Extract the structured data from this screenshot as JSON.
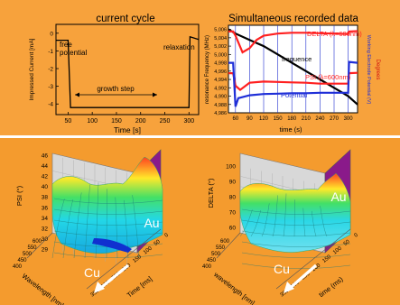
{
  "panels": {
    "current_cycle": {
      "title": "current cycle",
      "ylabel": "Impressed Current [mA]",
      "xlabel": "Time [s]",
      "xticks": [
        "50",
        "100",
        "150",
        "200",
        "250",
        "300"
      ],
      "yticks": [
        "0",
        "-1",
        "-2",
        "-3",
        "-4"
      ],
      "annotations": [
        "free",
        "potential",
        "growth step",
        "relaxation"
      ]
    },
    "simultaneous": {
      "title": "Simultaneous recorded data",
      "xlabel": "time (s)",
      "ylabel_left": "resonance Frequency (MHz)",
      "ylabel_right": "Working Electrode Potential (V)",
      "ylabel_right_outer": "Degrees",
      "xticks": [
        "60",
        "90",
        "120",
        "150",
        "180",
        "210",
        "240",
        "270",
        "300"
      ],
      "yticks_left": [
        "5,006",
        "5,004",
        "5,002",
        "5,000",
        "4,998",
        "4,996",
        "4,994",
        "4,992",
        "4,990",
        "4,988",
        "4,986"
      ],
      "legend": {
        "delta": "DELTA (λ=600nm)",
        "frequence": "frequence",
        "psi": "PSI (λ=600nm)",
        "potential": "Potential"
      },
      "colors": {
        "delta": "#ff2020",
        "psi": "#ff2020",
        "frequence": "#000000",
        "potential": "#1f2fd8"
      }
    },
    "psi_surface": {
      "zlabel": "PSI (°)",
      "zticks": [
        "46",
        "44",
        "42",
        "40",
        "38",
        "36",
        "34",
        "32",
        "30",
        "29"
      ],
      "xlabel": "Wavelength [nm]",
      "xticks": [
        "600",
        "550",
        "500",
        "450",
        "400"
      ],
      "ylabel": "Time [ms]",
      "yticks": [
        "350",
        "300",
        "250",
        "200",
        "150",
        "100",
        "50",
        "0"
      ],
      "label_cu": "Cu",
      "label_au": "Au"
    },
    "delta_surface": {
      "zlabel": "DELTA (°)",
      "zticks": [
        "100",
        "90",
        "80",
        "70",
        "60"
      ],
      "xlabel": "wavelength [nm]",
      "xticks": [
        "600",
        "550",
        "500",
        "450",
        "400"
      ],
      "ylabel": "time (ms)",
      "yticks": [
        "350",
        "300",
        "250",
        "200",
        "150",
        "100",
        "50",
        "0"
      ],
      "label_cu": "Cu",
      "label_au": "Au"
    }
  },
  "chart_data": [
    {
      "type": "line",
      "title": "current cycle",
      "xlabel": "Time [s]",
      "ylabel": "Impressed Current [mA]",
      "xlim": [
        25,
        320
      ],
      "ylim": [
        -4.6,
        0.5
      ],
      "series": [
        {
          "x": [
            25,
            50,
            55,
            60,
            300,
            302,
            320
          ],
          "y": [
            -0.4,
            -0.4,
            -4.2,
            -4.2,
            -4.2,
            -0.2,
            -0.35
          ]
        }
      ]
    },
    {
      "type": "line",
      "title": "Simultaneous recorded data",
      "xlabel": "time (s)",
      "ylabel": "resonance Frequency (MHz)",
      "xlim": [
        45,
        320
      ],
      "ylim": [
        4.986,
        5.007
      ],
      "series": [
        {
          "name": "frequence",
          "x": [
            45,
            60,
            90,
            120,
            150,
            180,
            210,
            240,
            270,
            300,
            320
          ],
          "y": [
            5.006,
            5.005,
            5.0035,
            5.002,
            5.0,
            4.998,
            4.996,
            4.994,
            4.992,
            4.99,
            4.988
          ]
        },
        {
          "name": "DELTA (λ=600nm)",
          "x": [
            45,
            55,
            60,
            75,
            90,
            105,
            120,
            150,
            180,
            210,
            240,
            270,
            300,
            302,
            320
          ],
          "y": [
            5.0055,
            5.0055,
            5.0045,
            5.0005,
            5.0015,
            5.0035,
            5.0045,
            5.005,
            5.0052,
            5.0052,
            5.0051,
            5.005,
            5.0049,
            5.0055,
            5.0056
          ]
        },
        {
          "name": "PSI (λ=600nm)",
          "x": [
            45,
            55,
            60,
            70,
            90,
            120,
            150,
            180,
            210,
            240,
            270,
            300,
            302,
            320
          ],
          "y": [
            4.9955,
            4.9955,
            4.9925,
            4.9915,
            4.9932,
            4.9935,
            4.9934,
            4.9933,
            4.9932,
            4.993,
            4.993,
            4.993,
            4.9955,
            4.9956
          ]
        },
        {
          "name": "Potential",
          "x": [
            45,
            55,
            60,
            66,
            90,
            120,
            150,
            180,
            210,
            240,
            270,
            300,
            302,
            320
          ],
          "y": [
            4.998,
            4.998,
            4.9875,
            4.9895,
            4.9902,
            4.9905,
            4.9906,
            4.9907,
            4.9907,
            4.9908,
            4.9908,
            4.9908,
            4.9982,
            4.998
          ]
        }
      ]
    },
    {
      "type": "surface",
      "zlabel": "PSI (°)",
      "xlabel": "Wavelength [nm]",
      "ylabel": "Time [ms]",
      "zlim": [
        29,
        46
      ]
    },
    {
      "type": "surface",
      "zlabel": "DELTA (°)",
      "xlabel": "wavelength [nm]",
      "ylabel": "time (ms)",
      "zlim": [
        60,
        100
      ]
    }
  ]
}
